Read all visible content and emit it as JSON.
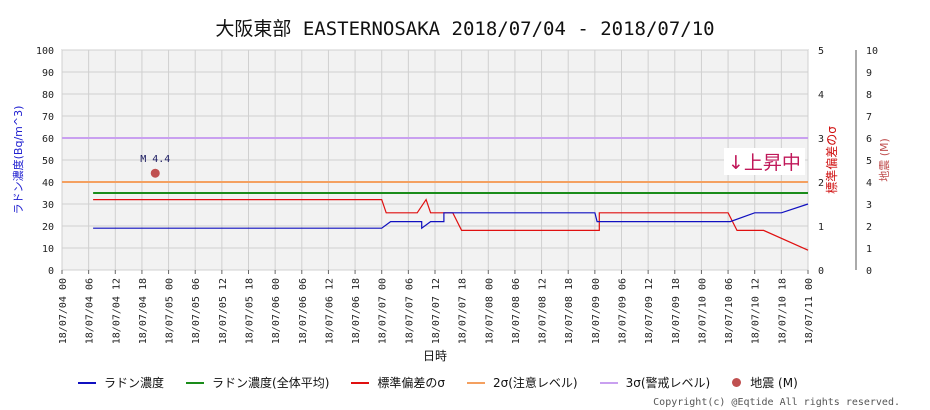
{
  "title": "大阪東部 EASTERNOSAKA 2018/07/04 - 2018/07/10",
  "rising_label": "↓上昇中",
  "copyright": "Copyright(c) @Eqtide All rights reserved.",
  "legend": [
    {
      "label": "ラドン濃度",
      "color": "#1010c0",
      "kind": "line"
    },
    {
      "label": "ラドン濃度(全体平均)",
      "color": "#1a8c1a",
      "kind": "line"
    },
    {
      "label": "標準偏差のσ",
      "color": "#e01010",
      "kind": "line"
    },
    {
      "label": "2σ(注意レベル)",
      "color": "#f4a060",
      "kind": "line"
    },
    {
      "label": "3σ(警戒レベル)",
      "color": "#c9a0f0",
      "kind": "line"
    },
    {
      "label": "地震 (M)",
      "color": "#c05050",
      "kind": "dot"
    }
  ],
  "chart_data": {
    "type": "line",
    "title": "大阪東部 EASTERNOSAKA 2018/07/04 - 2018/07/10",
    "xlabel": "日時",
    "ylabel_left": "ラドン濃度(Bq/m^3)",
    "ylabel_right1": "標準偏差のσ",
    "ylabel_right2": "地震 (M)",
    "xlim_hours": [
      0,
      168
    ],
    "ylim_left": [
      0,
      100
    ],
    "ylim_right1": [
      0,
      5
    ],
    "ylim_right2": [
      0,
      10
    ],
    "x_tick_labels": [
      "18/07/04 00",
      "18/07/04 06",
      "18/07/04 12",
      "18/07/04 18",
      "18/07/05 00",
      "18/07/05 06",
      "18/07/05 12",
      "18/07/05 18",
      "18/07/06 00",
      "18/07/06 06",
      "18/07/06 12",
      "18/07/06 18",
      "18/07/07 00",
      "18/07/07 06",
      "18/07/07 12",
      "18/07/07 18",
      "18/07/08 00",
      "18/07/08 06",
      "18/07/08 12",
      "18/07/08 18",
      "18/07/09 00",
      "18/07/09 06",
      "18/07/09 12",
      "18/07/09 18",
      "18/07/10 00",
      "18/07/10 06",
      "18/07/10 12",
      "18/07/10 18",
      "18/07/11 00"
    ],
    "y_tick_labels_left": [
      "0",
      "10",
      "20",
      "30",
      "40",
      "50",
      "60",
      "70",
      "80",
      "90",
      "100"
    ],
    "y_tick_labels_right1": [
      "0",
      "1",
      "2",
      "3",
      "4",
      "5"
    ],
    "y_tick_labels_right2": [
      "0",
      "1",
      "2",
      "3",
      "4",
      "5",
      "6",
      "7",
      "8",
      "9",
      "10"
    ],
    "grid": true,
    "legend_position": "bottom",
    "series": [
      {
        "name": "ラドン濃度",
        "axis": "left",
        "color": "#1010c0",
        "x": [
          7,
          72,
          74,
          81,
          81,
          83,
          84,
          86,
          86,
          90,
          90,
          96,
          120,
          120.5,
          121,
          150,
          150.5,
          156,
          162,
          168
        ],
        "y": [
          19,
          19,
          22,
          22,
          19,
          22,
          22,
          22,
          26,
          26,
          26,
          26,
          26,
          22,
          22,
          22,
          22,
          26,
          26,
          30
        ]
      },
      {
        "name": "ラドン濃度(全体平均)",
        "axis": "left",
        "color": "#1a8c1a",
        "x": [
          7,
          168
        ],
        "y": [
          35,
          35
        ]
      },
      {
        "name": "標準偏差のσ",
        "axis": "left",
        "color": "#e01010",
        "x": [
          7,
          72,
          73,
          80,
          82,
          83,
          88,
          90,
          91,
          121,
          121,
          150,
          152,
          158,
          168
        ],
        "y": [
          32,
          32,
          26,
          26,
          32,
          26,
          26,
          18,
          18,
          18,
          26,
          26,
          18,
          18,
          9
        ]
      },
      {
        "name": "2σ(注意レベル)",
        "axis": "left",
        "color": "#f4a060",
        "x": [
          0,
          168
        ],
        "y": [
          40,
          40
        ]
      },
      {
        "name": "3σ(警戒レベル)",
        "axis": "left",
        "color": "#c9a0f0",
        "x": [
          0,
          168
        ],
        "y": [
          60,
          60
        ]
      }
    ],
    "earthquakes": [
      {
        "x": 21,
        "magnitude": 4.4,
        "label": "M 4.4"
      }
    ]
  }
}
